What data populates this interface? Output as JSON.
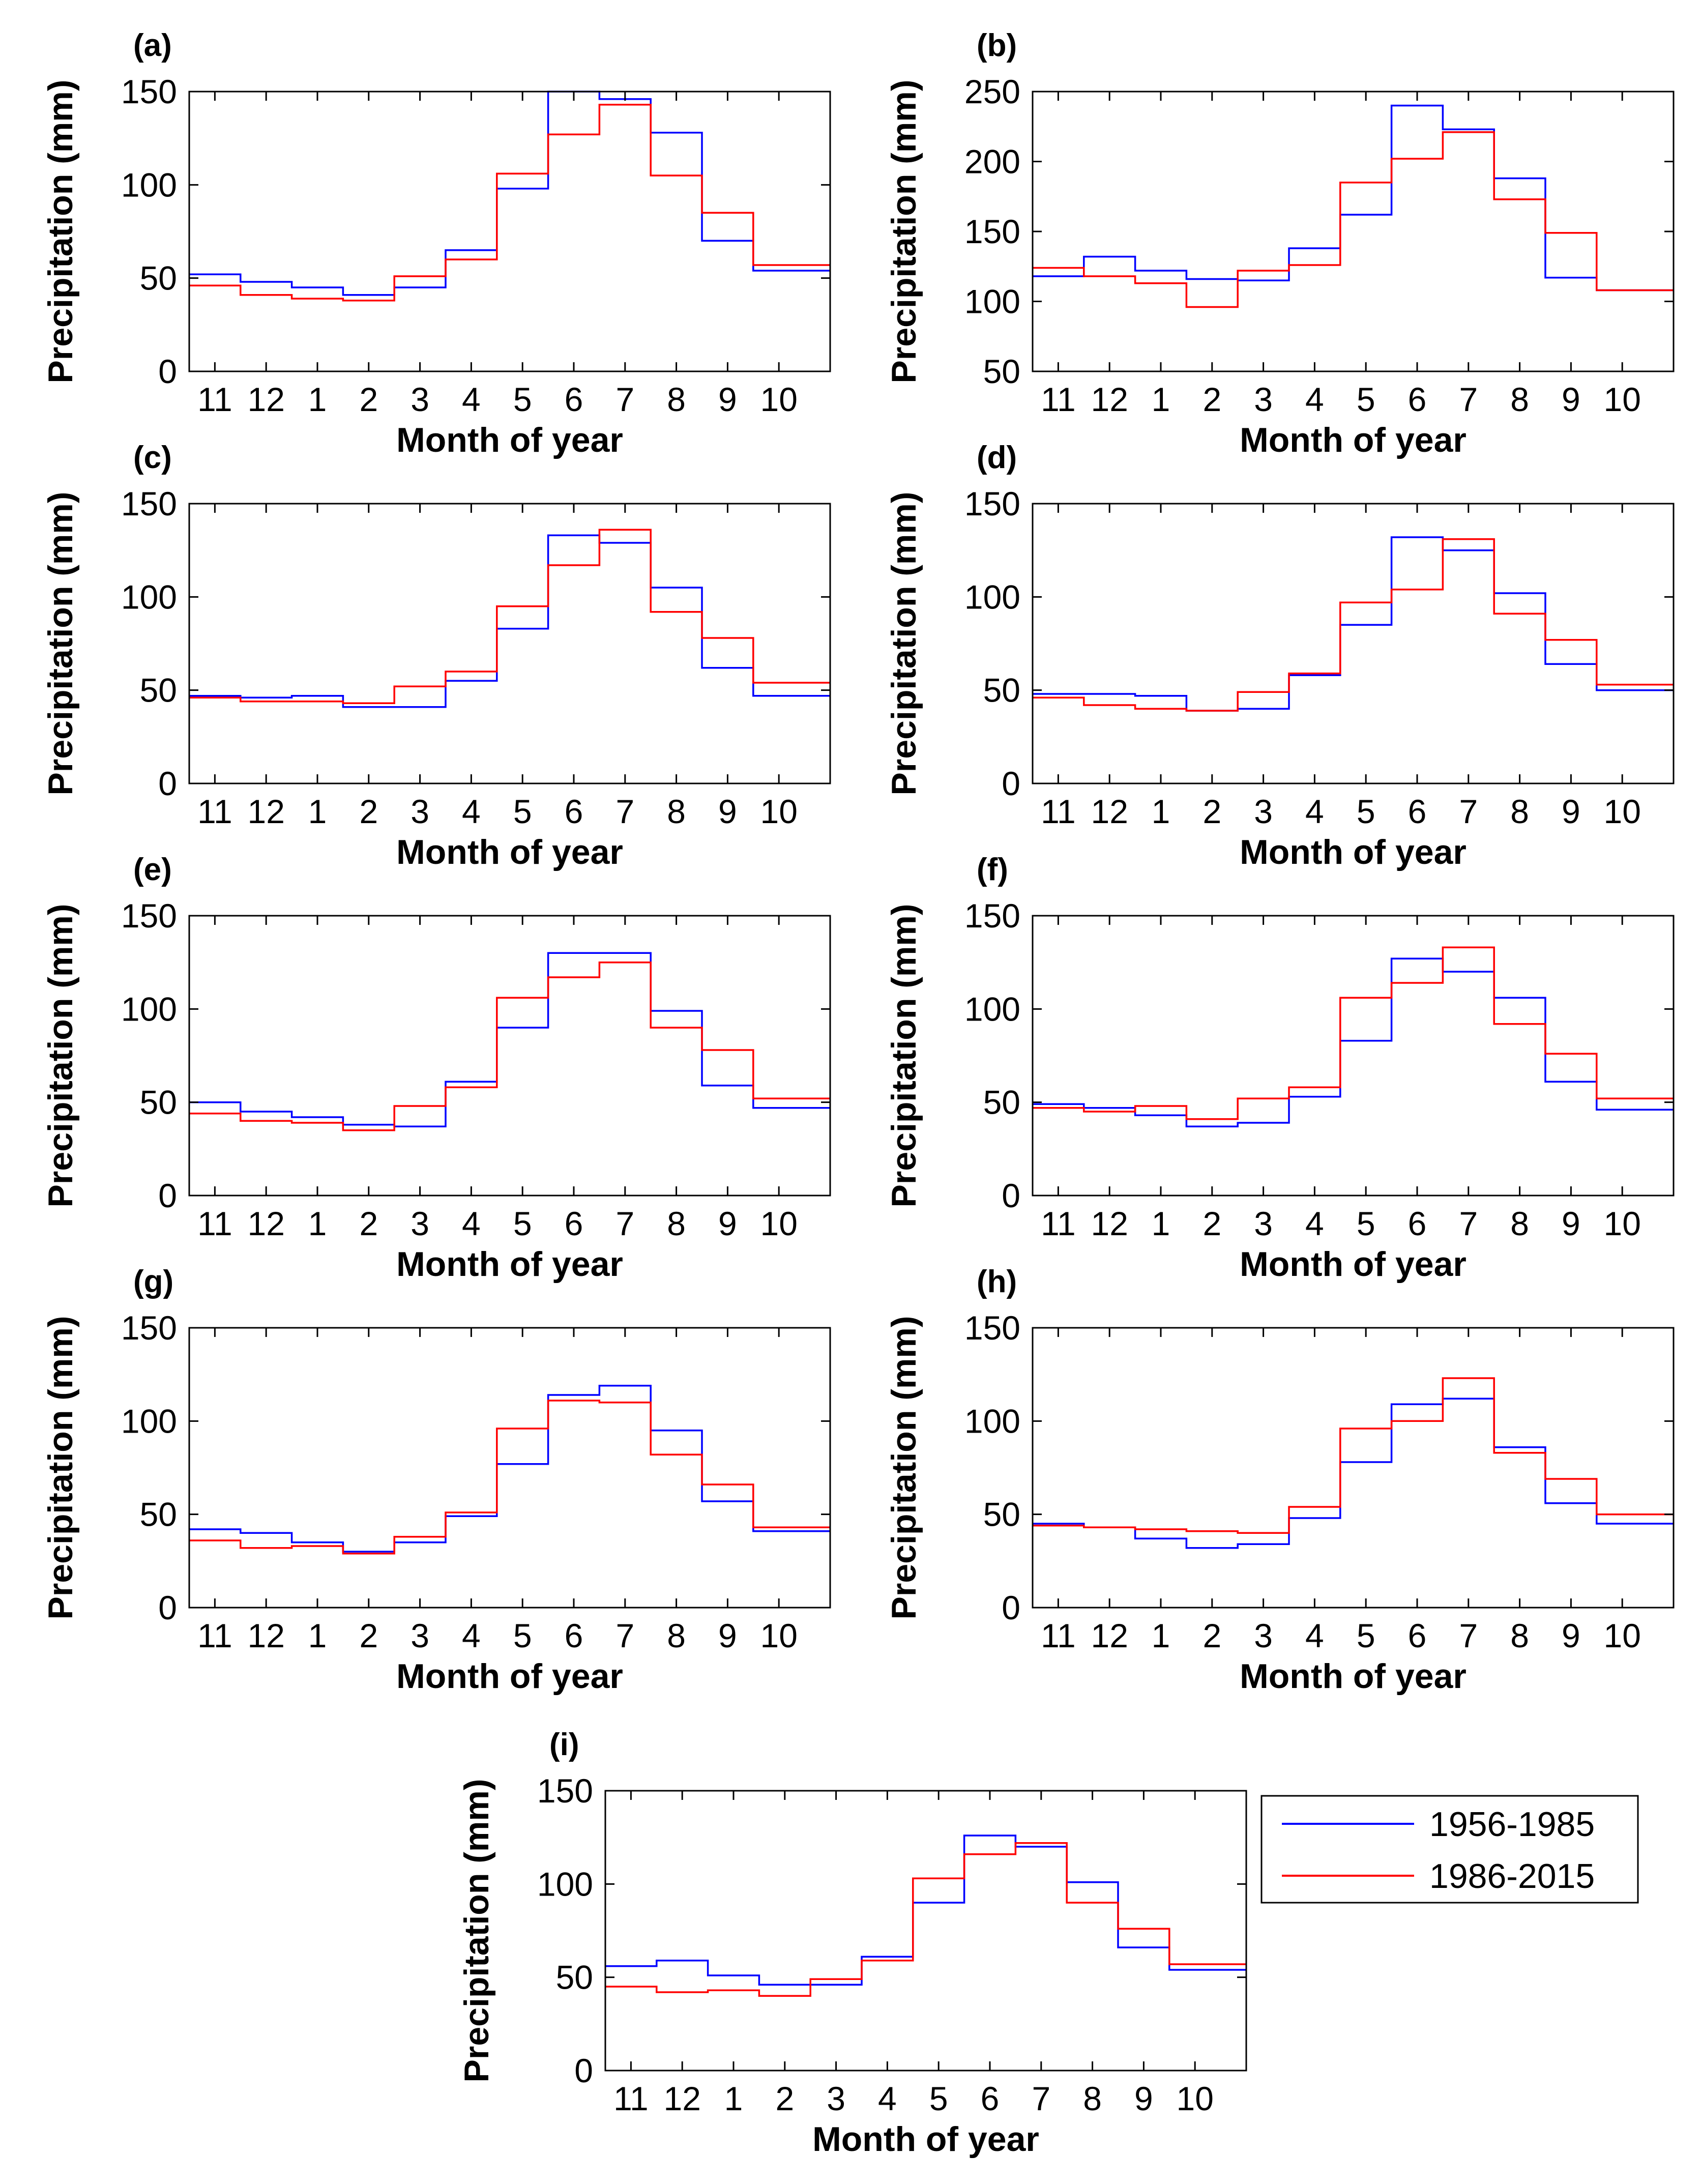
{
  "figure": {
    "legend": [
      {
        "label": "1956-1985",
        "color": "#0000ff"
      },
      {
        "label": "1986-2015",
        "color": "#ff0000"
      }
    ]
  },
  "chart_data": [
    {
      "type": "line",
      "panel": "(a)",
      "xlabel": "Month of year",
      "ylabel": "Precipitation (mm)",
      "categories": [
        "11",
        "12",
        "1",
        "2",
        "3",
        "4",
        "5",
        "6",
        "7",
        "8",
        "9",
        "10"
      ],
      "ylim": [
        0,
        150
      ],
      "yticks": [
        0,
        50,
        100,
        150
      ],
      "series": [
        {
          "name": "1956-1985",
          "color": "#0000ff",
          "values": [
            52,
            48,
            45,
            41,
            45,
            65,
            98,
            150,
            146,
            128,
            70,
            54
          ]
        },
        {
          "name": "1986-2015",
          "color": "#ff0000",
          "values": [
            46,
            41,
            39,
            38,
            51,
            60,
            106,
            127,
            143,
            105,
            85,
            57
          ]
        }
      ]
    },
    {
      "type": "line",
      "panel": "(b)",
      "xlabel": "Month of year",
      "ylabel": "Precipitation (mm)",
      "categories": [
        "11",
        "12",
        "1",
        "2",
        "3",
        "4",
        "5",
        "6",
        "7",
        "8",
        "9",
        "10"
      ],
      "ylim": [
        50,
        250
      ],
      "yticks": [
        50,
        100,
        150,
        200,
        250
      ],
      "series": [
        {
          "name": "1956-1985",
          "color": "#0000ff",
          "values": [
            118,
            132,
            122,
            116,
            115,
            138,
            162,
            240,
            223,
            188,
            117,
            108
          ]
        },
        {
          "name": "1986-2015",
          "color": "#ff0000",
          "values": [
            124,
            118,
            113,
            96,
            122,
            126,
            185,
            202,
            221,
            173,
            149,
            108
          ]
        }
      ]
    },
    {
      "type": "line",
      "panel": "(c)",
      "xlabel": "Month of year",
      "ylabel": "Precipitation (mm)",
      "categories": [
        "11",
        "12",
        "1",
        "2",
        "3",
        "4",
        "5",
        "6",
        "7",
        "8",
        "9",
        "10"
      ],
      "ylim": [
        0,
        150
      ],
      "yticks": [
        0,
        50,
        100,
        150
      ],
      "series": [
        {
          "name": "1956-1985",
          "color": "#0000ff",
          "values": [
            47,
            46,
            47,
            41,
            41,
            55,
            83,
            133,
            129,
            105,
            62,
            47
          ]
        },
        {
          "name": "1986-2015",
          "color": "#ff0000",
          "values": [
            46,
            44,
            44,
            43,
            52,
            60,
            95,
            117,
            136,
            92,
            78,
            54
          ]
        }
      ]
    },
    {
      "type": "line",
      "panel": "(d)",
      "xlabel": "Month of year",
      "ylabel": "Precipitation (mm)",
      "categories": [
        "11",
        "12",
        "1",
        "2",
        "3",
        "4",
        "5",
        "6",
        "7",
        "8",
        "9",
        "10"
      ],
      "ylim": [
        0,
        150
      ],
      "yticks": [
        0,
        50,
        100,
        150
      ],
      "series": [
        {
          "name": "1956-1985",
          "color": "#0000ff",
          "values": [
            48,
            48,
            47,
            39,
            40,
            58,
            85,
            132,
            125,
            102,
            64,
            50
          ]
        },
        {
          "name": "1986-2015",
          "color": "#ff0000",
          "values": [
            46,
            42,
            40,
            39,
            49,
            59,
            97,
            104,
            131,
            91,
            77,
            53
          ]
        }
      ]
    },
    {
      "type": "line",
      "panel": "(e)",
      "xlabel": "Month of year",
      "ylabel": "Precipitation (mm)",
      "categories": [
        "11",
        "12",
        "1",
        "2",
        "3",
        "4",
        "5",
        "6",
        "7",
        "8",
        "9",
        "10"
      ],
      "ylim": [
        0,
        150
      ],
      "yticks": [
        0,
        50,
        100,
        150
      ],
      "series": [
        {
          "name": "1956-1985",
          "color": "#0000ff",
          "values": [
            50,
            45,
            42,
            38,
            37,
            61,
            90,
            130,
            130,
            99,
            59,
            47
          ]
        },
        {
          "name": "1986-2015",
          "color": "#ff0000",
          "values": [
            44,
            40,
            39,
            35,
            48,
            58,
            106,
            117,
            125,
            90,
            78,
            52
          ]
        }
      ]
    },
    {
      "type": "line",
      "panel": "(f)",
      "xlabel": "Month of year",
      "ylabel": "Precipitation (mm)",
      "categories": [
        "11",
        "12",
        "1",
        "2",
        "3",
        "4",
        "5",
        "6",
        "7",
        "8",
        "9",
        "10"
      ],
      "ylim": [
        0,
        150
      ],
      "yticks": [
        0,
        50,
        100,
        150
      ],
      "series": [
        {
          "name": "1956-1985",
          "color": "#0000ff",
          "values": [
            49,
            47,
            43,
            37,
            39,
            53,
            83,
            127,
            120,
            106,
            61,
            46
          ]
        },
        {
          "name": "1986-2015",
          "color": "#ff0000",
          "values": [
            47,
            45,
            48,
            41,
            52,
            58,
            106,
            114,
            133,
            92,
            76,
            52
          ]
        }
      ]
    },
    {
      "type": "line",
      "panel": "(g)",
      "xlabel": "Month of year",
      "ylabel": "Precipitation (mm)",
      "categories": [
        "11",
        "12",
        "1",
        "2",
        "3",
        "4",
        "5",
        "6",
        "7",
        "8",
        "9",
        "10"
      ],
      "ylim": [
        0,
        150
      ],
      "yticks": [
        0,
        50,
        100,
        150
      ],
      "series": [
        {
          "name": "1956-1985",
          "color": "#0000ff",
          "values": [
            42,
            40,
            35,
            30,
            35,
            49,
            77,
            114,
            119,
            95,
            57,
            41
          ]
        },
        {
          "name": "1986-2015",
          "color": "#ff0000",
          "values": [
            36,
            32,
            33,
            29,
            38,
            51,
            96,
            111,
            110,
            82,
            66,
            43
          ]
        }
      ]
    },
    {
      "type": "line",
      "panel": "(h)",
      "xlabel": "Month of year",
      "ylabel": "Precipitation (mm)",
      "categories": [
        "11",
        "12",
        "1",
        "2",
        "3",
        "4",
        "5",
        "6",
        "7",
        "8",
        "9",
        "10"
      ],
      "ylim": [
        0,
        150
      ],
      "yticks": [
        0,
        50,
        100,
        150
      ],
      "series": [
        {
          "name": "1956-1985",
          "color": "#0000ff",
          "values": [
            45,
            43,
            37,
            32,
            34,
            48,
            78,
            109,
            112,
            86,
            56,
            45
          ]
        },
        {
          "name": "1986-2015",
          "color": "#ff0000",
          "values": [
            44,
            43,
            42,
            41,
            40,
            54,
            96,
            100,
            123,
            83,
            69,
            50
          ]
        }
      ]
    },
    {
      "type": "line",
      "panel": "(i)",
      "xlabel": "Month of year",
      "ylabel": "Precipitation (mm)",
      "categories": [
        "11",
        "12",
        "1",
        "2",
        "3",
        "4",
        "5",
        "6",
        "7",
        "8",
        "9",
        "10"
      ],
      "ylim": [
        0,
        150
      ],
      "yticks": [
        0,
        50,
        100,
        150
      ],
      "series": [
        {
          "name": "1956-1985",
          "color": "#0000ff",
          "values": [
            56,
            59,
            51,
            46,
            46,
            61,
            90,
            126,
            120,
            101,
            66,
            54
          ]
        },
        {
          "name": "1986-2015",
          "color": "#ff0000",
          "values": [
            45,
            42,
            43,
            40,
            49,
            59,
            103,
            116,
            122,
            90,
            76,
            57
          ]
        }
      ]
    }
  ]
}
